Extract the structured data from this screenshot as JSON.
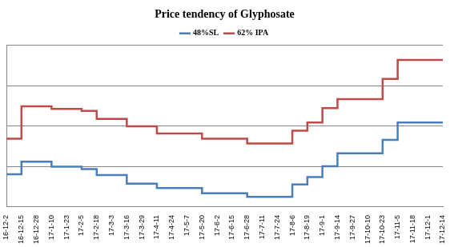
{
  "chart_data": {
    "type": "line",
    "title": "Price tendency of Glyphosate",
    "categories": [
      "16-12-2",
      "16-12-15",
      "16-12-28",
      "17-1-10",
      "17-1-23",
      "17-2-5",
      "17-2-18",
      "17-3-3",
      "17-3-16",
      "17-3-29",
      "17-4-11",
      "17-4-24",
      "17-5-7",
      "17-5-20",
      "17-6-2",
      "17-6-15",
      "17-6-28",
      "17-7-11",
      "17-7-24",
      "17-8-6",
      "17-8-19",
      "17-9-1",
      "17-9-14",
      "17-9-27",
      "17-10-10",
      "17-10-23",
      "17-11-5",
      "17-11-18",
      "17-12-1",
      "17-12-14"
    ],
    "series": [
      {
        "name": "48%SL",
        "color": "#4a7ebb",
        "values": [
          0.81,
          1.12,
          1.12,
          1.0,
          1.0,
          0.94,
          0.79,
          0.79,
          0.58,
          0.58,
          0.47,
          0.47,
          0.47,
          0.34,
          0.34,
          0.34,
          0.25,
          0.25,
          0.25,
          0.56,
          0.74,
          1.01,
          1.33,
          1.33,
          1.33,
          1.66,
          2.09,
          2.09,
          2.09,
          2.09
        ]
      },
      {
        "name": "62% IPA",
        "color": "#be4b48",
        "values": [
          1.69,
          2.49,
          2.49,
          2.43,
          2.43,
          2.38,
          2.18,
          2.18,
          2.0,
          2.0,
          1.82,
          1.82,
          1.82,
          1.69,
          1.69,
          1.69,
          1.57,
          1.57,
          1.57,
          1.89,
          2.09,
          2.45,
          2.67,
          2.67,
          2.67,
          3.17,
          3.64,
          3.64,
          3.64,
          3.64
        ]
      }
    ],
    "ylim": [
      0,
      4
    ],
    "yticks": [
      0,
      1,
      2,
      3,
      4
    ],
    "grid": true,
    "legend": "top",
    "tick_labels": "x",
    "line_style": "stepped"
  }
}
